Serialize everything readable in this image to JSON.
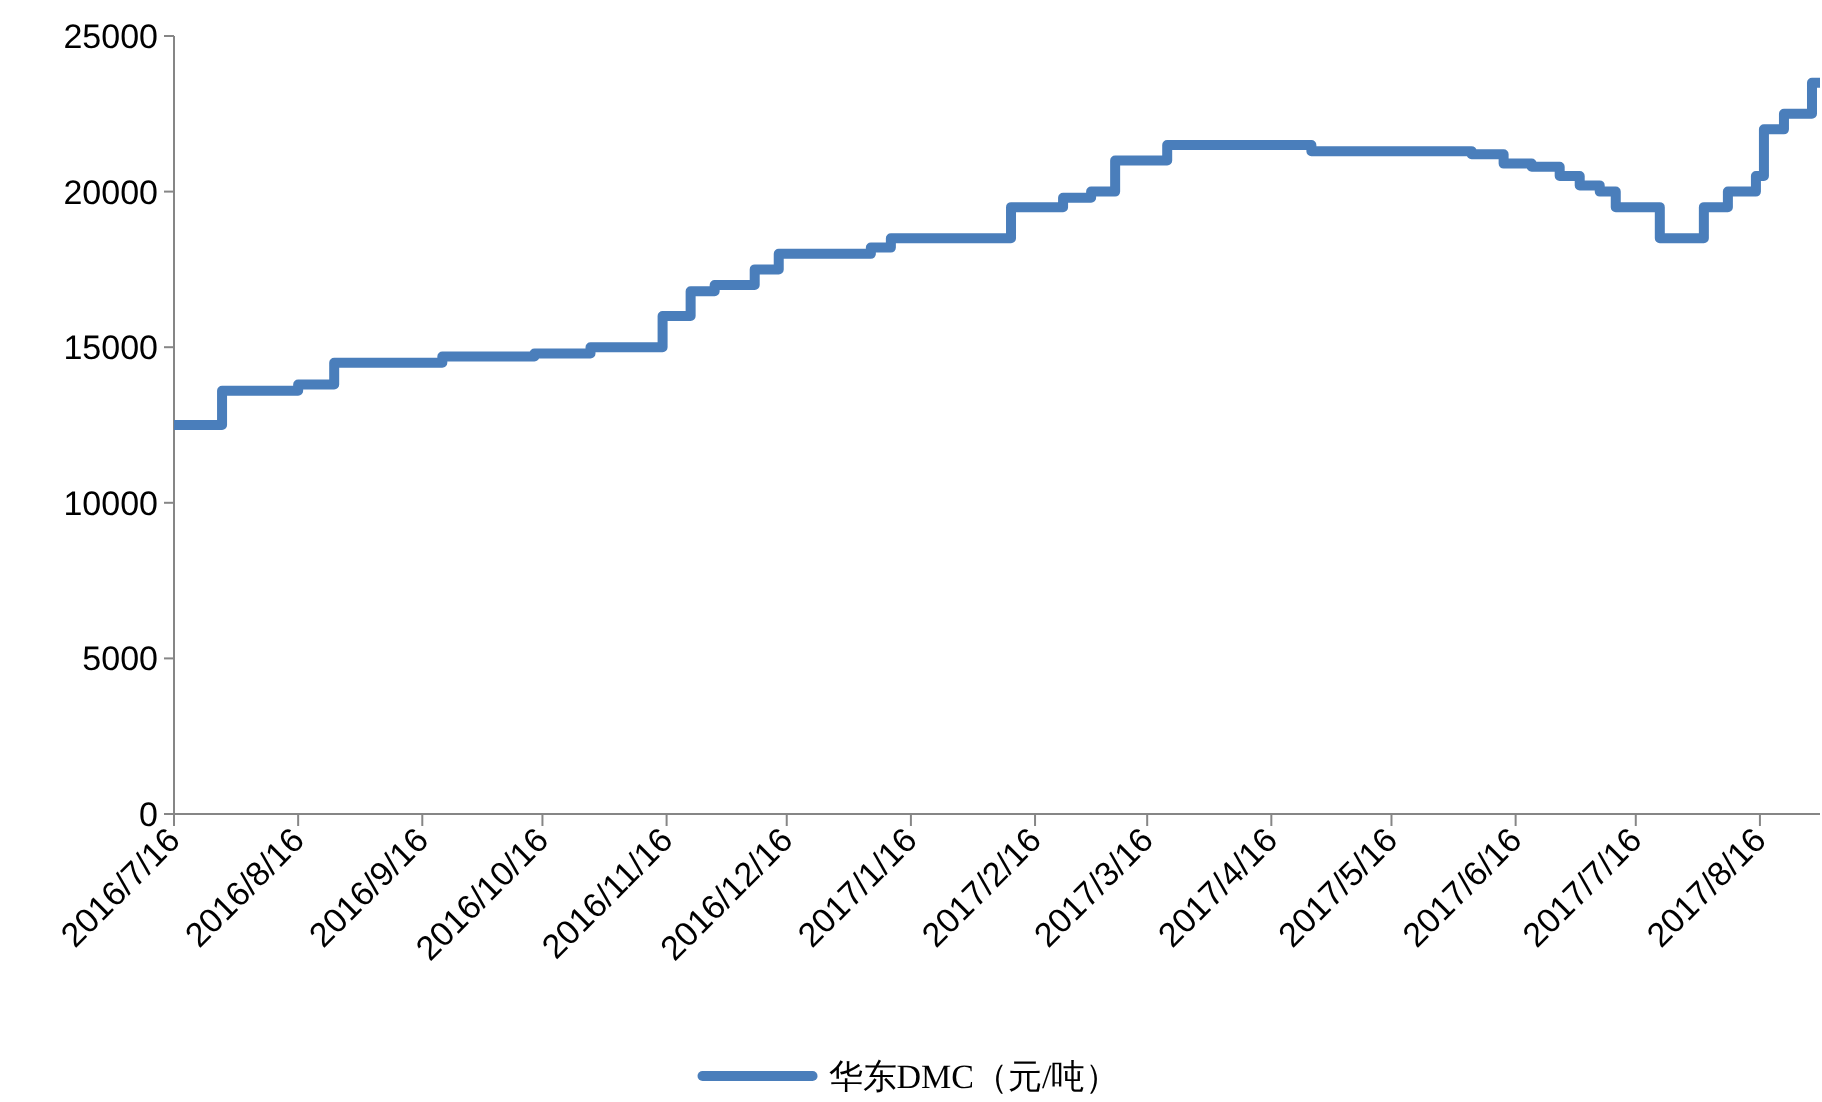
{
  "chart_data": {
    "type": "step",
    "x": [
      "2016-07-16",
      "2016-07-28",
      "2016-08-16",
      "2016-08-25",
      "2016-09-21",
      "2016-10-14",
      "2016-10-28",
      "2016-11-15",
      "2016-11-22",
      "2016-11-28",
      "2016-12-08",
      "2016-12-14",
      "2017-01-06",
      "2017-01-11",
      "2017-02-10",
      "2017-02-23",
      "2017-03-02",
      "2017-03-08",
      "2017-03-21",
      "2017-04-26",
      "2017-06-05",
      "2017-06-13",
      "2017-06-20",
      "2017-06-27",
      "2017-07-02",
      "2017-07-07",
      "2017-07-11",
      "2017-07-22",
      "2017-08-02",
      "2017-08-08",
      "2017-08-15",
      "2017-08-17",
      "2017-08-22",
      "2017-08-29",
      "2017-08-31"
    ],
    "series": [
      {
        "name": "华东DMC（元/吨）",
        "color": "#4a7ebb",
        "values": [
          12500,
          13600,
          13800,
          14500,
          14700,
          14800,
          15000,
          16000,
          16800,
          17000,
          17500,
          18000,
          18200,
          18500,
          19500,
          19800,
          20000,
          21000,
          21500,
          21300,
          21200,
          20900,
          20800,
          20500,
          20200,
          20000,
          19500,
          18500,
          19500,
          20000,
          20500,
          22000,
          22500,
          23500,
          23500
        ]
      }
    ],
    "xlim": [
      "2016-07-16",
      "2017-08-31"
    ],
    "xticks": [
      {
        "value": "2016-07-16",
        "label": "2016/7/16"
      },
      {
        "value": "2016-08-16",
        "label": "2016/8/16"
      },
      {
        "value": "2016-09-16",
        "label": "2016/9/16"
      },
      {
        "value": "2016-10-16",
        "label": "2016/10/16"
      },
      {
        "value": "2016-11-16",
        "label": "2016/11/16"
      },
      {
        "value": "2016-12-16",
        "label": "2016/12/16"
      },
      {
        "value": "2017-01-16",
        "label": "2017/1/16"
      },
      {
        "value": "2017-02-16",
        "label": "2017/2/16"
      },
      {
        "value": "2017-03-16",
        "label": "2017/3/16"
      },
      {
        "value": "2017-04-16",
        "label": "2017/4/16"
      },
      {
        "value": "2017-05-16",
        "label": "2017/5/16"
      },
      {
        "value": "2017-06-16",
        "label": "2017/6/16"
      },
      {
        "value": "2017-07-16",
        "label": "2017/7/16"
      },
      {
        "value": "2017-08-16",
        "label": "2017/8/16"
      }
    ],
    "ylim": [
      0,
      25000
    ],
    "yticks": [
      0,
      5000,
      10000,
      15000,
      20000,
      25000
    ],
    "grid": false,
    "legend": "bottom",
    "marker": "none",
    "line_style": "solid"
  }
}
